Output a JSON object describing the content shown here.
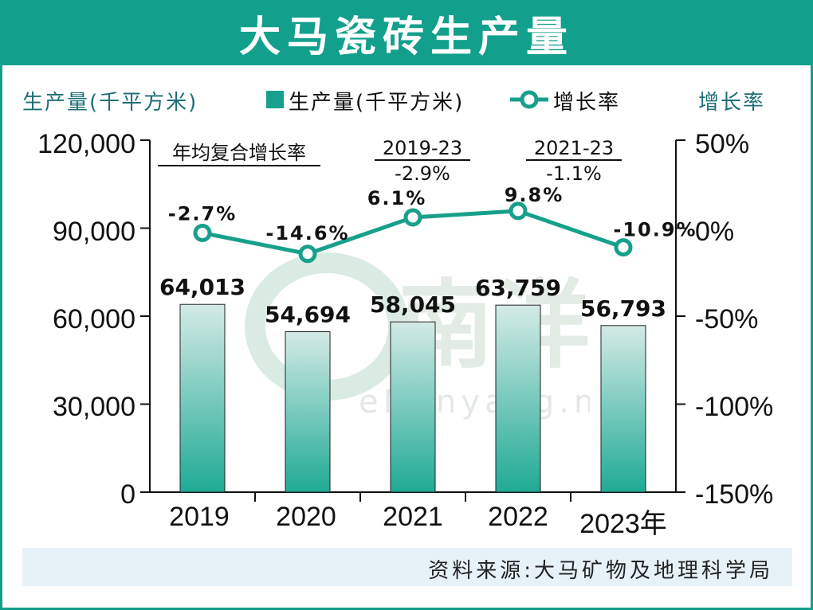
{
  "title": "大马瓷砖生产量",
  "left_axis_label": "生产量(千平方米)",
  "right_axis_label": "增长率",
  "legend": {
    "bar_label": "生产量(千平方米)",
    "line_label": "增长率"
  },
  "cagr": {
    "heading": "年均复合增长率",
    "periods": [
      {
        "period": "2019-23",
        "value": "-2.9%"
      },
      {
        "period": "2021-23",
        "value": "-1.1%"
      }
    ]
  },
  "source": "资料来源:大马矿物及地理科学局",
  "watermark_text": "eNanyang.my",
  "colors": {
    "accent": "#12a08c",
    "bar_top": "#cfe7e3",
    "bar_bottom": "#2aab97",
    "line": "#17a08b"
  },
  "chart_data": {
    "type": "bar+line",
    "categories": [
      "2019",
      "2020",
      "2021",
      "2022",
      "2023年"
    ],
    "bar_values": [
      64013,
      54694,
      58045,
      63759,
      56793
    ],
    "bar_labels": [
      "64,013",
      "54,694",
      "58,045",
      "63,759",
      "56,793"
    ],
    "line_values": [
      -2.7,
      -14.6,
      6.1,
      9.8,
      -10.9
    ],
    "line_labels": [
      "-2.7%",
      "-14.6%",
      "6.1%",
      "9.8%",
      "-10.9%"
    ],
    "left_ylim": [
      0,
      120000
    ],
    "left_ticks": [
      "0",
      "30,000",
      "60,000",
      "90,000",
      "120,000"
    ],
    "right_ylim": [
      -150,
      50
    ],
    "right_ticks": [
      "-150%",
      "-100%",
      "-50%",
      "0%",
      "50%"
    ]
  }
}
